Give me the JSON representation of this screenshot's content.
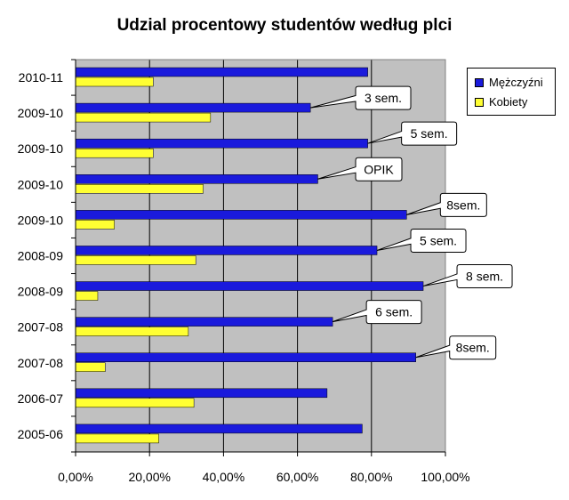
{
  "chart_data": {
    "type": "bar",
    "orientation": "horizontal",
    "title": "Udzial procentowy studentów według plci",
    "categories": [
      "2010-11",
      "2009-10",
      "2009-10",
      "2009-10",
      "2009-10",
      "2008-09",
      "2008-09",
      "2007-08",
      "2007-08",
      "2006-07",
      "2005-06"
    ],
    "series": [
      {
        "name": "Mężczyźni",
        "color": "#1a1adc",
        "values": [
          79,
          63.5,
          79,
          65.5,
          89.5,
          81.5,
          94,
          69.5,
          92,
          68,
          77.5
        ]
      },
      {
        "name": "Kobiety",
        "color": "#ffff33",
        "values": [
          21,
          36.5,
          21,
          34.5,
          10.5,
          32.5,
          6,
          30.5,
          8,
          32,
          22.5
        ]
      }
    ],
    "annotations": [
      "",
      "3 sem.",
      "5 sem.",
      "OPIK",
      "8sem.",
      "5 sem.",
      "8 sem.",
      "6 sem.",
      "8sem.",
      "",
      ""
    ],
    "xticks": [
      "0,00%",
      "20,00%",
      "40,00%",
      "60,00%",
      "80,00%",
      "100,00%"
    ],
    "xlim": [
      0,
      100
    ],
    "grid": true,
    "plot_background": "#c0c0c0",
    "legend_position": "top-right"
  }
}
